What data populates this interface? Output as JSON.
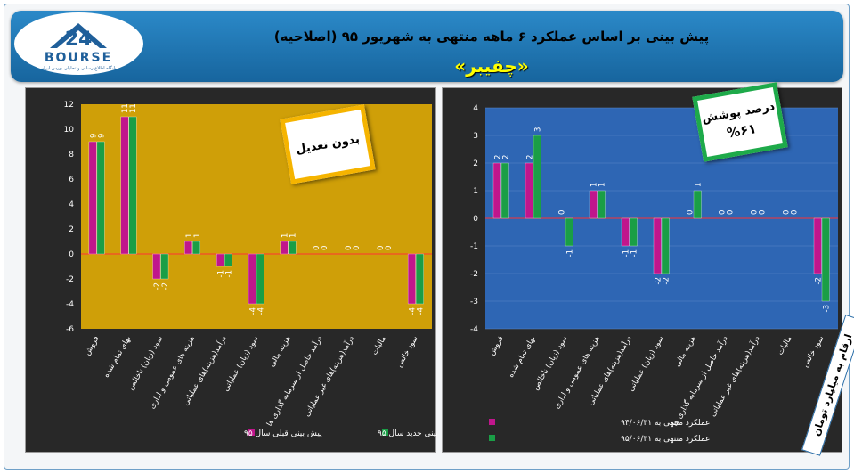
{
  "header": {
    "title": "پیش بینی بر اساس عملکرد ۶ ماهه منتهی به شهریور ۹۵ (اصلاحیه)",
    "subtitle": "«چفیبر»",
    "logo_text": "BOURSE",
    "logo_tagline": "پایگاه اطلاع رسانی و تحلیلی بورس ایران"
  },
  "sticker_left": {
    "text": "بدون تعدیل"
  },
  "sticker_right": {
    "title": "درصد پوشش",
    "value": "%۶۱"
  },
  "side_note": "ارقام به میلیارد تومان",
  "colors": {
    "magenta": "#c0168c",
    "green": "#1a9e46",
    "zero": "#ff3333",
    "gold": "#cf9f08",
    "blue": "#2e66b4"
  },
  "chart_data": [
    {
      "type": "bar",
      "background": "gold",
      "categories": [
        "فروش",
        "بهای تمام شده",
        "سود (زیان) ناخالص",
        "هزینه های عمومی و اداری",
        "درآمد(هزینه)های عملیاتی",
        "سود (زیان) عملیاتی",
        "هزینه مالی",
        "درآمد حاصل از سرمایه گذاری ها",
        "درآمد(هزینه)های غیر عملیاتی",
        "مالیات",
        "سود خالص"
      ],
      "ylim": [
        -6,
        12
      ],
      "yticks": [
        "-6",
        "-4",
        "-2",
        "0",
        "2",
        "4",
        "6",
        "8",
        "10",
        "12"
      ],
      "series": [
        {
          "name": "پیش بینی قبلی سال ۹۵",
          "color": "magenta",
          "values": [
            9,
            11,
            -2,
            1,
            -1,
            -4,
            1,
            0,
            0,
            0,
            -4
          ]
        },
        {
          "name": "پیش بینی جدید سال ۹۵",
          "color": "green",
          "values": [
            9,
            11,
            -2,
            1,
            -1,
            -4,
            1,
            0,
            0,
            0,
            -4
          ]
        }
      ],
      "legend": "bottom",
      "grid": false
    },
    {
      "type": "bar",
      "background": "blue",
      "categories": [
        "فروش",
        "بهای تمام شده",
        "سود (زیان) ناخالص",
        "هزینه های عمومی و اداری",
        "درآمد(هزینه)های عملیاتی",
        "سود (زیان) عملیاتی",
        "هزینه مالی",
        "درآمد حاصل از سرمایه گذاری ها",
        "درآمد(هزینه)های غیر عملیاتی",
        "مالیات",
        "سود خالص"
      ],
      "ylim": [
        -4,
        4
      ],
      "yticks": [
        "-4",
        "-3",
        "-2",
        "-1",
        "0",
        "1",
        "2",
        "3",
        "4"
      ],
      "series": [
        {
          "name": "عملکرد منتهی به ۹۴/۰۶/۳۱",
          "color": "magenta",
          "values": [
            2,
            2,
            0,
            1,
            -1,
            -2,
            0,
            0,
            0,
            0,
            -2
          ]
        },
        {
          "name": "عملکرد منتهی به ۹۵/۰۶/۳۱",
          "color": "green",
          "values": [
            2,
            3,
            -1,
            1,
            -1,
            -2,
            1,
            0,
            0,
            0,
            -3
          ]
        }
      ],
      "legend": "bottom",
      "grid": true
    }
  ]
}
